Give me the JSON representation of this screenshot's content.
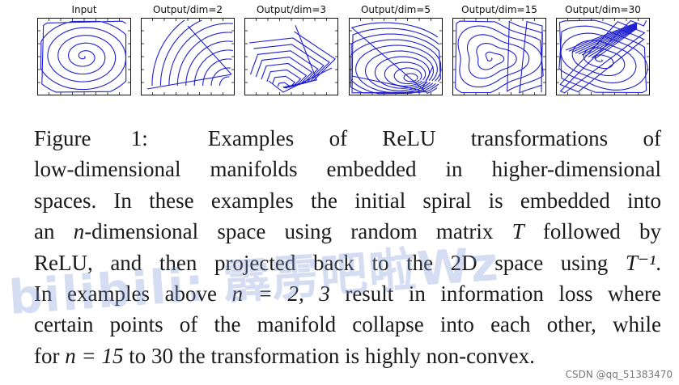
{
  "figure": {
    "panels": [
      {
        "title": "Input",
        "kind": "input"
      },
      {
        "title": "Output/dim=2",
        "kind": "dim2"
      },
      {
        "title": "Output/dim=3",
        "kind": "dim3"
      },
      {
        "title": "Output/dim=5",
        "kind": "dim5"
      },
      {
        "title": "Output/dim=15",
        "kind": "dim15"
      },
      {
        "title": "Output/dim=30",
        "kind": "dim30"
      }
    ],
    "line_color": "#1f1fd0"
  },
  "caption": {
    "label": "Figure 1:",
    "lines": [
      "Examples of ReLU transformations of",
      "low-dimensional manifolds embedded in higher-dimensional",
      "spaces. In these examples the initial spiral is embedded into",
      [
        "an ",
        "n",
        "-dimensional space using random matrix ",
        "T",
        " followed by"
      ],
      [
        "ReLU, and then projected back to the 2D space using ",
        "T⁻¹",
        "."
      ],
      [
        "In examples above ",
        "n = 2, 3",
        " result in information loss where"
      ],
      "certain points of the manifold collapse into each other, while",
      [
        "for ",
        "n = 15",
        " to 30 the transformation is highly non-convex."
      ]
    ]
  },
  "watermark": "bilibili: 霹雳吧啦Wz",
  "credit": "CSDN @qq_51383470"
}
